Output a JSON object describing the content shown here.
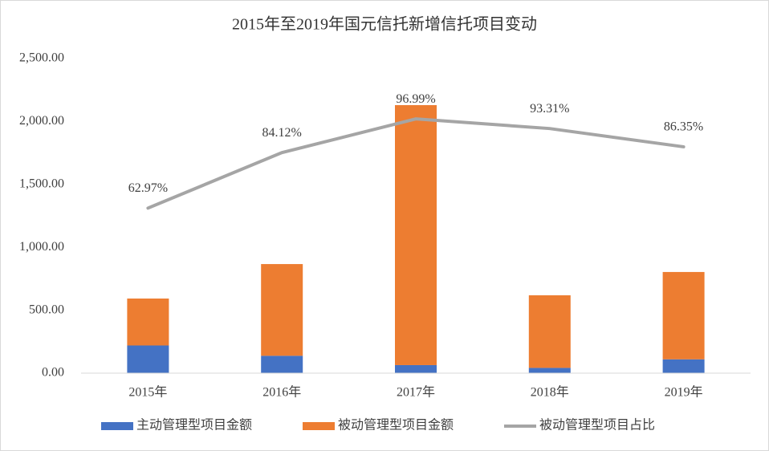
{
  "chart_data": {
    "type": "bar",
    "stacked": true,
    "title": "2015年至2019年国元信托新增信托项目变动",
    "categories": [
      "2015年",
      "2016年",
      "2017年",
      "2018年",
      "2019年"
    ],
    "series": [
      {
        "name": "主动管理型项目金额",
        "type": "bar",
        "color": "#4472c4",
        "values": [
          220,
          138,
          64,
          42,
          110
        ]
      },
      {
        "name": "被动管理型项目金额",
        "type": "bar",
        "color": "#ed7d31",
        "values": [
          373,
          729,
          2066,
          577,
          694
        ]
      },
      {
        "name": "被动管理型项目占比",
        "type": "line",
        "axis": "y2",
        "color": "#a5a5a5",
        "values": [
          62.97,
          84.12,
          96.99,
          93.31,
          86.35
        ],
        "value_labels": [
          "62.97%",
          "84.12%",
          "96.99%",
          "93.31%",
          "86.35%"
        ]
      }
    ],
    "ylim": [
      0,
      2500
    ],
    "yticks": [
      {
        "value": 0,
        "label": "0.00"
      },
      {
        "value": 500,
        "label": "500.00"
      },
      {
        "value": 1000,
        "label": "1,000.00"
      },
      {
        "value": 1500,
        "label": "1,500.00"
      },
      {
        "value": 2000,
        "label": "2,000.00"
      },
      {
        "value": 2500,
        "label": "2,500.00"
      }
    ],
    "y2lim": [
      0,
      120
    ],
    "grid": false,
    "legend": "bottom"
  }
}
